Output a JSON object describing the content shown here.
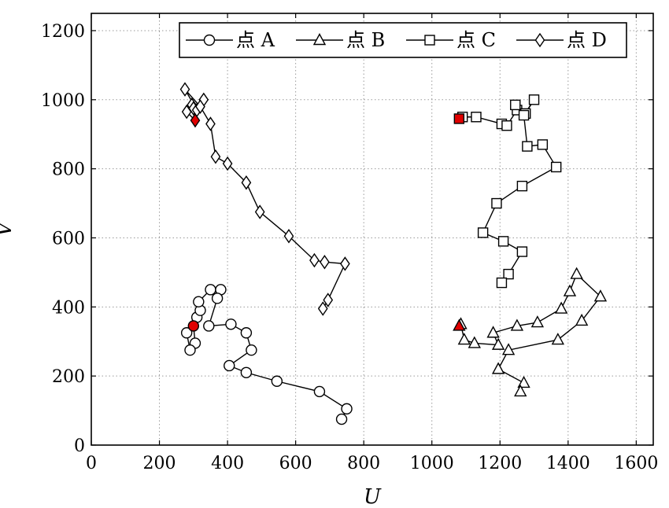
{
  "chart_data": {
    "type": "line",
    "xlabel": "U",
    "ylabel": "V",
    "xlim": [
      0,
      1650
    ],
    "ylim": [
      0,
      1250
    ],
    "xticks": [
      0,
      200,
      400,
      600,
      800,
      1000,
      1200,
      1400,
      1600
    ],
    "yticks": [
      0,
      200,
      400,
      600,
      800,
      1000,
      1200
    ],
    "grid": true,
    "legend_position": "top-right",
    "start_marker_color": "#e00000",
    "series": [
      {
        "name": "点 A",
        "marker": "circle",
        "points": [
          [
            300,
            345
          ],
          [
            305,
            295
          ],
          [
            290,
            275
          ],
          [
            280,
            325
          ],
          [
            310,
            370
          ],
          [
            320,
            390
          ],
          [
            315,
            415
          ],
          [
            350,
            450
          ],
          [
            380,
            450
          ],
          [
            370,
            425
          ],
          [
            345,
            345
          ],
          [
            410,
            350
          ],
          [
            455,
            325
          ],
          [
            470,
            275
          ],
          [
            405,
            230
          ],
          [
            455,
            210
          ],
          [
            545,
            185
          ],
          [
            670,
            155
          ],
          [
            750,
            105
          ],
          [
            735,
            75
          ]
        ]
      },
      {
        "name": "点 B",
        "marker": "triangle",
        "points": [
          [
            1080,
            345
          ],
          [
            1085,
            350
          ],
          [
            1095,
            305
          ],
          [
            1125,
            295
          ],
          [
            1195,
            290
          ],
          [
            1180,
            325
          ],
          [
            1250,
            345
          ],
          [
            1310,
            355
          ],
          [
            1380,
            395
          ],
          [
            1405,
            445
          ],
          [
            1425,
            495
          ],
          [
            1495,
            430
          ],
          [
            1440,
            360
          ],
          [
            1370,
            305
          ],
          [
            1225,
            275
          ],
          [
            1195,
            220
          ],
          [
            1270,
            180
          ],
          [
            1260,
            155
          ]
        ]
      },
      {
        "name": "点 C",
        "marker": "square",
        "points": [
          [
            1080,
            945
          ],
          [
            1090,
            950
          ],
          [
            1130,
            950
          ],
          [
            1205,
            930
          ],
          [
            1220,
            925
          ],
          [
            1250,
            970
          ],
          [
            1245,
            985
          ],
          [
            1275,
            960
          ],
          [
            1300,
            1000
          ],
          [
            1270,
            955
          ],
          [
            1280,
            865
          ],
          [
            1325,
            870
          ],
          [
            1365,
            805
          ],
          [
            1265,
            750
          ],
          [
            1190,
            700
          ],
          [
            1150,
            615
          ],
          [
            1210,
            590
          ],
          [
            1265,
            560
          ],
          [
            1225,
            495
          ],
          [
            1205,
            470
          ]
        ]
      },
      {
        "name": "点 D",
        "marker": "diamond",
        "points": [
          [
            305,
            940
          ],
          [
            280,
            965
          ],
          [
            295,
            985
          ],
          [
            300,
            975
          ],
          [
            330,
            1000
          ],
          [
            310,
            970
          ],
          [
            275,
            1030
          ],
          [
            320,
            980
          ],
          [
            350,
            930
          ],
          [
            365,
            835
          ],
          [
            400,
            815
          ],
          [
            455,
            760
          ],
          [
            495,
            675
          ],
          [
            580,
            605
          ],
          [
            655,
            535
          ],
          [
            685,
            530
          ],
          [
            745,
            525
          ],
          [
            695,
            420
          ],
          [
            680,
            395
          ]
        ]
      }
    ]
  }
}
